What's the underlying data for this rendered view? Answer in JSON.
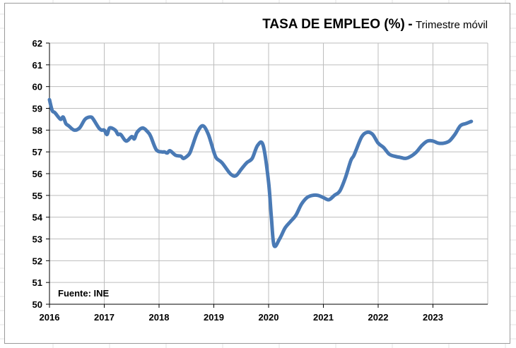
{
  "chart_data": {
    "type": "line",
    "title": "TASA DE EMPLEO (%)",
    "title_separator": "-",
    "subtitle": "Trimestre móvil",
    "source_note": "Fuente: INE",
    "xlabel": "",
    "ylabel": "",
    "ylim": [
      50,
      62
    ],
    "xlim": [
      2016,
      2024
    ],
    "y_ticks": [
      50,
      51,
      52,
      53,
      54,
      55,
      56,
      57,
      58,
      59,
      60,
      61,
      62
    ],
    "x_ticks": [
      2016,
      2017,
      2018,
      2019,
      2020,
      2021,
      2022,
      2023
    ],
    "grid": true,
    "legend": "none",
    "line_color": "#4a7ab5",
    "series": [
      {
        "x": [
          2016.0,
          2016.05,
          2016.1,
          2016.2,
          2016.25,
          2016.3,
          2016.35,
          2016.45,
          2016.55,
          2016.65,
          2016.75,
          2016.8,
          2016.9,
          2016.95,
          2017.0,
          2017.05,
          2017.1,
          2017.2,
          2017.25,
          2017.3,
          2017.4,
          2017.5,
          2017.55,
          2017.6,
          2017.7,
          2017.8,
          2017.85,
          2017.95,
          2018.05,
          2018.1,
          2018.15,
          2018.2,
          2018.3,
          2018.4,
          2018.45,
          2018.55,
          2018.6,
          2018.7,
          2018.8,
          2018.9,
          2019.0,
          2019.05,
          2019.15,
          2019.3,
          2019.4,
          2019.5,
          2019.6,
          2019.7,
          2019.8,
          2019.9,
          2020.0,
          2020.05,
          2020.1,
          2020.2,
          2020.3,
          2020.4,
          2020.5,
          2020.6,
          2020.7,
          2020.8,
          2020.9,
          2021.0,
          2021.1,
          2021.2,
          2021.3,
          2021.4,
          2021.5,
          2021.55,
          2021.6,
          2021.7,
          2021.8,
          2021.9,
          2022.0,
          2022.1,
          2022.2,
          2022.3,
          2022.4,
          2022.5,
          2022.6,
          2022.7,
          2022.8,
          2022.9,
          2023.0,
          2023.1,
          2023.2,
          2023.3,
          2023.4,
          2023.5,
          2023.6,
          2023.7
        ],
        "y": [
          59.4,
          58.9,
          58.8,
          58.5,
          58.6,
          58.3,
          58.2,
          58.0,
          58.1,
          58.5,
          58.6,
          58.5,
          58.1,
          58.0,
          58.0,
          57.8,
          58.1,
          58.0,
          57.8,
          57.8,
          57.5,
          57.7,
          57.6,
          57.9,
          58.1,
          57.9,
          57.7,
          57.1,
          57.0,
          57.0,
          56.95,
          57.05,
          56.85,
          56.8,
          56.7,
          56.9,
          57.2,
          57.9,
          58.2,
          57.8,
          57.0,
          56.7,
          56.5,
          56.0,
          55.9,
          56.2,
          56.5,
          56.7,
          57.3,
          57.3,
          55.6,
          54.0,
          52.7,
          53.0,
          53.5,
          53.8,
          54.1,
          54.6,
          54.9,
          55.0,
          55.0,
          54.9,
          54.8,
          55.0,
          55.2,
          55.8,
          56.6,
          56.8,
          57.1,
          57.7,
          57.9,
          57.8,
          57.4,
          57.2,
          56.9,
          56.8,
          56.75,
          56.7,
          56.8,
          57.0,
          57.3,
          57.5,
          57.5,
          57.4,
          57.4,
          57.5,
          57.8,
          58.2,
          58.3,
          58.4
        ]
      }
    ]
  }
}
